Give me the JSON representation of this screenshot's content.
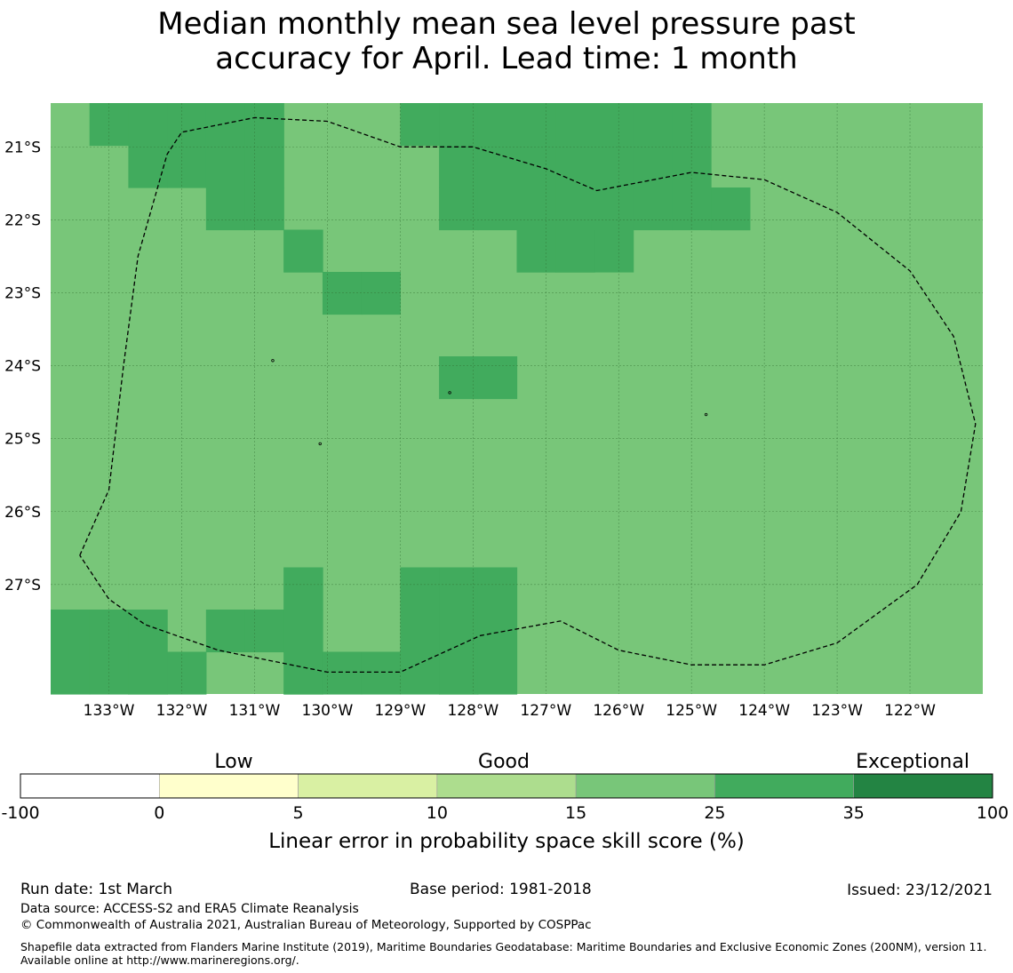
{
  "title_line1": "Median monthly mean sea level pressure past",
  "title_line2": "accuracy for April. Lead time: 1 month",
  "map": {
    "lon_range": [
      -133.8,
      -121.0
    ],
    "lat_range": [
      -28.5,
      -20.4
    ],
    "lon_ticks": [
      "133°W",
      "132°W",
      "131°W",
      "130°W",
      "129°W",
      "128°W",
      "127°W",
      "126°W",
      "125°W",
      "124°W",
      "123°W",
      "122°W"
    ],
    "lon_tick_values": [
      -133,
      -132,
      -131,
      -130,
      -129,
      -128,
      -127,
      -126,
      -125,
      -124,
      -123,
      -122
    ],
    "lat_ticks": [
      "21°S",
      "22°S",
      "23°S",
      "24°S",
      "25°S",
      "26°S",
      "27°S"
    ],
    "lat_tick_values": [
      -21,
      -22,
      -23,
      -24,
      -25,
      -26,
      -27
    ],
    "base_class": "15-25",
    "base_color": "#78c679",
    "high_color": "#41ab5d",
    "high_cells_35_to_25": [
      {
        "lon": -133.3,
        "lat": -20.4
      },
      {
        "lon": -132.9,
        "lat": -20.4
      },
      {
        "lon": -132.5,
        "lat": -20.4
      },
      {
        "lon": -132.1,
        "lat": -20.4
      },
      {
        "lon": -131.6,
        "lat": -20.4
      },
      {
        "lon": -131.2,
        "lat": -20.4
      },
      {
        "lon": -132.5,
        "lat": -20.8
      },
      {
        "lon": -132.1,
        "lat": -20.8
      },
      {
        "lon": -131.6,
        "lat": -20.8
      },
      {
        "lon": -131.2,
        "lat": -20.8
      },
      {
        "lon": -131.6,
        "lat": -21.3
      },
      {
        "lon": -131.2,
        "lat": -21.3
      },
      {
        "lon": -130.8,
        "lat": -21.9
      },
      {
        "lon": -130.4,
        "lat": -21.9
      },
      {
        "lon": -129.9,
        "lat": -23.0
      },
      {
        "lon": -129.5,
        "lat": -23.0
      },
      {
        "lon": -129.1,
        "lat": -20.4
      },
      {
        "lon": -128.7,
        "lat": -20.4
      },
      {
        "lon": -128.3,
        "lat": -20.4
      },
      {
        "lon": -127.9,
        "lat": -20.4
      },
      {
        "lon": -127.5,
        "lat": -20.4
      },
      {
        "lon": -127.1,
        "lat": -20.4
      },
      {
        "lon": -126.7,
        "lat": -20.4
      },
      {
        "lon": -126.2,
        "lat": -20.4
      },
      {
        "lon": -125.8,
        "lat": -20.4
      },
      {
        "lon": -125.4,
        "lat": -20.4
      },
      {
        "lon": -128.3,
        "lat": -21.0
      },
      {
        "lon": -127.9,
        "lat": -21.0
      },
      {
        "lon": -127.5,
        "lat": -21.0
      },
      {
        "lon": -127.1,
        "lat": -21.0
      },
      {
        "lon": -126.7,
        "lat": -21.0
      },
      {
        "lon": -126.2,
        "lat": -21.0
      },
      {
        "lon": -125.8,
        "lat": -21.0
      },
      {
        "lon": -125.4,
        "lat": -21.0
      },
      {
        "lon": -128.3,
        "lat": -21.3
      },
      {
        "lon": -127.9,
        "lat": -21.3
      },
      {
        "lon": -127.5,
        "lat": -21.3
      },
      {
        "lon": -127.1,
        "lat": -21.3
      },
      {
        "lon": -126.7,
        "lat": -21.3
      },
      {
        "lon": -126.2,
        "lat": -21.3
      },
      {
        "lon": -125.8,
        "lat": -21.3
      },
      {
        "lon": -125.4,
        "lat": -21.3
      },
      {
        "lon": -125.0,
        "lat": -21.3
      },
      {
        "lon": -124.6,
        "lat": -21.3
      },
      {
        "lon": -127.5,
        "lat": -21.9
      },
      {
        "lon": -127.1,
        "lat": -21.9
      },
      {
        "lon": -126.7,
        "lat": -21.9
      },
      {
        "lon": -126.2,
        "lat": -21.9
      },
      {
        "lon": -127.5,
        "lat": -22.4
      },
      {
        "lon": -127.1,
        "lat": -22.4
      },
      {
        "lon": -128.3,
        "lat": -24.1
      },
      {
        "lon": -127.9,
        "lat": -24.1
      },
      {
        "lon": -130.8,
        "lat": -26.8
      },
      {
        "lon": -130.4,
        "lat": -26.8
      },
      {
        "lon": -129.1,
        "lat": -26.8
      },
      {
        "lon": -128.7,
        "lat": -26.8
      },
      {
        "lon": -128.3,
        "lat": -26.8
      },
      {
        "lon": -127.9,
        "lat": -26.8
      },
      {
        "lon": -133.8,
        "lat": -27.3
      },
      {
        "lon": -133.3,
        "lat": -27.3
      },
      {
        "lon": -132.9,
        "lat": -27.3
      },
      {
        "lon": -131.6,
        "lat": -27.3
      },
      {
        "lon": -131.2,
        "lat": -27.3
      },
      {
        "lon": -130.8,
        "lat": -27.3
      },
      {
        "lon": -130.4,
        "lat": -27.3
      },
      {
        "lon": -129.1,
        "lat": -27.3
      },
      {
        "lon": -128.7,
        "lat": -27.3
      },
      {
        "lon": -128.3,
        "lat": -27.3
      },
      {
        "lon": -127.9,
        "lat": -27.3
      },
      {
        "lon": -133.8,
        "lat": -27.9
      },
      {
        "lon": -133.3,
        "lat": -27.9
      },
      {
        "lon": -132.9,
        "lat": -27.9
      },
      {
        "lon": -132.5,
        "lat": -27.9
      },
      {
        "lon": -132.1,
        "lat": -27.9
      },
      {
        "lon": -130.8,
        "lat": -27.9
      },
      {
        "lon": -130.4,
        "lat": -27.9
      },
      {
        "lon": -129.9,
        "lat": -27.9
      },
      {
        "lon": -129.5,
        "lat": -27.9
      },
      {
        "lon": -129.1,
        "lat": -27.9
      },
      {
        "lon": -128.7,
        "lat": -27.9
      },
      {
        "lon": -128.3,
        "lat": -27.9
      },
      {
        "lon": -127.9,
        "lat": -27.9
      }
    ],
    "eez_boundary": [
      [
        -133.4,
        -26.6
      ],
      [
        -133.0,
        -25.7
      ],
      [
        -132.8,
        -24.0
      ],
      [
        -132.6,
        -22.5
      ],
      [
        -132.2,
        -21.1
      ],
      [
        -132.0,
        -20.8
      ],
      [
        -131.0,
        -20.6
      ],
      [
        -130.0,
        -20.65
      ],
      [
        -129.0,
        -21.0
      ],
      [
        -128.0,
        -21.0
      ],
      [
        -127.0,
        -21.3
      ],
      [
        -126.3,
        -21.6
      ],
      [
        -125.0,
        -21.35
      ],
      [
        -124.0,
        -21.45
      ],
      [
        -123.0,
        -21.9
      ],
      [
        -122.0,
        -22.7
      ],
      [
        -121.4,
        -23.6
      ],
      [
        -121.1,
        -24.8
      ],
      [
        -121.3,
        -26.0
      ],
      [
        -121.9,
        -27.0
      ],
      [
        -123.0,
        -27.8
      ],
      [
        -124.0,
        -28.1
      ],
      [
        -125.0,
        -28.1
      ],
      [
        -126.0,
        -27.9
      ],
      [
        -126.8,
        -27.5
      ],
      [
        -127.9,
        -27.7
      ],
      [
        -129.0,
        -28.2
      ],
      [
        -130.0,
        -28.2
      ],
      [
        -131.5,
        -27.9
      ],
      [
        -132.5,
        -27.55
      ],
      [
        -133.0,
        -27.2
      ],
      [
        -133.4,
        -26.6
      ]
    ],
    "islands": [
      {
        "lon": -130.75,
        "lat": -23.93
      },
      {
        "lon": -130.1,
        "lat": -25.07
      },
      {
        "lon": -128.32,
        "lat": -24.37
      },
      {
        "lon": -124.8,
        "lat": -24.67
      }
    ]
  },
  "legend": {
    "category_labels": [
      "Low",
      "Good",
      "Exceptional"
    ],
    "bins": [
      {
        "from": "-100",
        "to": "0",
        "color": "#ffffff"
      },
      {
        "from": "0",
        "to": "5",
        "color": "#ffffcc"
      },
      {
        "from": "5",
        "to": "10",
        "color": "#d9f0a3"
      },
      {
        "from": "10",
        "to": "15",
        "color": "#addd8e"
      },
      {
        "from": "15",
        "to": "25",
        "color": "#78c679"
      },
      {
        "from": "25",
        "to": "35",
        "color": "#41ab5d"
      },
      {
        "from": "35",
        "to": "100",
        "color": "#238443"
      }
    ],
    "tick_labels": [
      "-100",
      "0",
      "5",
      "10",
      "15",
      "25",
      "35",
      "100"
    ],
    "axis_label": "Linear error in probability space skill score (%)"
  },
  "footer": {
    "run_date": "Run date: 1st March",
    "base_period": "Base period: 1981-2018",
    "issued": "Issued: 23/12/2021",
    "data_source": "Data source: ACCESS-S2 and ERA5 Climate Reanalysis",
    "copyright": "© Commonwealth of Australia 2021, Australian Bureau of Meteorology, Supported by COSPPac",
    "shapefile": "Shapefile data extracted from Flanders Marine Institute (2019), Maritime Boundaries Geodatabase: Maritime Boundaries and Exclusive Economic Zones (200NM), version 11. Available online at http://www.marineregions.org/."
  }
}
